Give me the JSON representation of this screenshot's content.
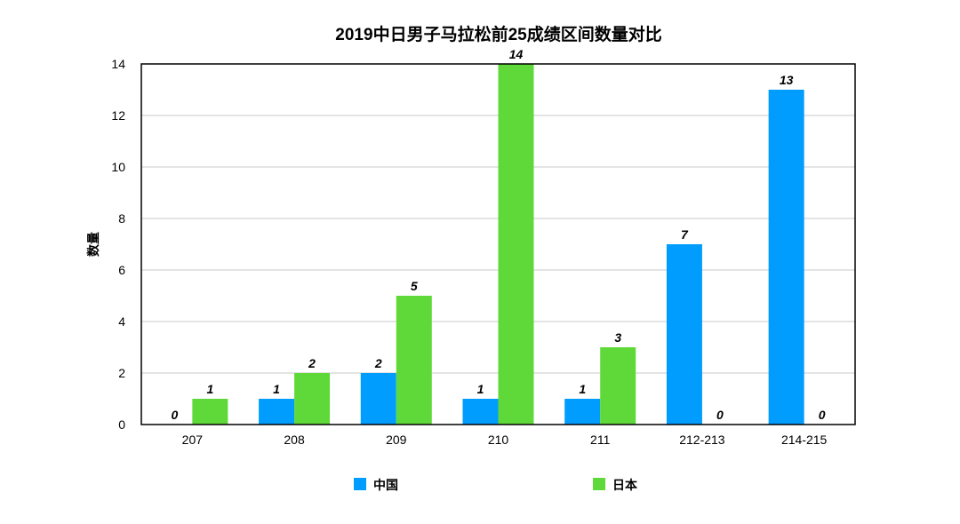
{
  "chart_data": {
    "type": "bar",
    "title": "2019中日男子马拉松前25成绩区间数量对比",
    "xlabel": "",
    "ylabel": "数量",
    "ylim": [
      0,
      14
    ],
    "yticks": [
      0,
      2,
      4,
      6,
      8,
      10,
      12,
      14
    ],
    "grid": true,
    "legend_position": "bottom",
    "categories": [
      "207",
      "208",
      "209",
      "210",
      "211",
      "212-213",
      "214-215"
    ],
    "series": [
      {
        "name": "中国",
        "color": "#009dff",
        "values": [
          0,
          1,
          2,
          1,
          1,
          7,
          13
        ]
      },
      {
        "name": "日本",
        "color": "#5fd93a",
        "values": [
          1,
          2,
          5,
          14,
          3,
          0,
          0
        ]
      }
    ]
  }
}
